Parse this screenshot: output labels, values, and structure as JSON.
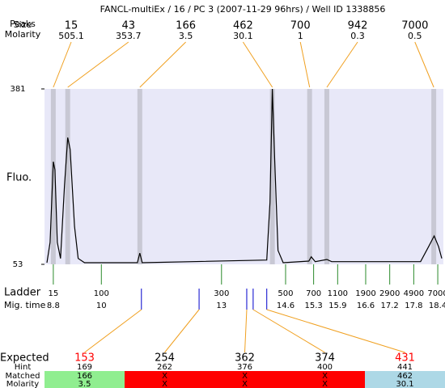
{
  "chart_data": {
    "type": "line",
    "title": "FANCL-multiEx / 16 / PC 3 (2007-11-29 96hrs) / Well ID 1338856",
    "y_label": "Fluo.",
    "x": [
      8.64,
      8.72,
      8.8,
      8.84,
      8.9,
      8.98,
      9.08,
      9.16,
      9.22,
      9.33,
      9.42,
      9.58,
      10.9,
      10.96,
      11.02,
      14.13,
      14.21,
      14.27,
      14.33,
      14.41,
      14.54,
      15.18,
      15.24,
      15.34,
      15.63,
      15.75,
      17.97,
      18.17,
      18.31,
      18.42,
      18.5
    ],
    "values": [
      56,
      94,
      245,
      230,
      94,
      64,
      200,
      290,
      268,
      124,
      64,
      56,
      56,
      74,
      56,
      61,
      169,
      381,
      245,
      79,
      56,
      59,
      67,
      58,
      62,
      58,
      58,
      86,
      106,
      86,
      64
    ],
    "color": "#000000",
    "xlim": [
      8.58,
      18.54
    ],
    "ylim": [
      53,
      381
    ],
    "yticks": [
      53,
      381
    ],
    "peak_header": "Peaks",
    "peak_rows": [
      "Size",
      "Molarity"
    ],
    "peaks": [
      {
        "size": 15,
        "molarity": 505.1,
        "time": 8.8
      },
      {
        "size": 43,
        "molarity": 353.7,
        "time": 9.16
      },
      {
        "size": 166,
        "molarity": 3.5,
        "time": 10.96
      },
      {
        "size": 462,
        "molarity": 30.1,
        "time": 14.27
      },
      {
        "size": 700,
        "molarity": 1,
        "time": 15.2
      },
      {
        "size": 942,
        "molarity": 0.3,
        "time": 15.63
      },
      {
        "size": 7000,
        "molarity": 0.5,
        "time": 18.3
      }
    ],
    "ladder_labels": [
      "Ladder",
      "Mig. time"
    ],
    "ladder": [
      {
        "size": 15,
        "time": 8.8
      },
      {
        "size": 100,
        "time": 10
      },
      {
        "size": 300,
        "time": 13
      },
      {
        "size": 500,
        "time": 14.6
      },
      {
        "size": 700,
        "time": 15.3
      },
      {
        "size": 1100,
        "time": 15.9
      },
      {
        "size": 1900,
        "time": 16.6
      },
      {
        "size": 2900,
        "time": 17.2
      },
      {
        "size": 4900,
        "time": 17.8
      },
      {
        "size": 7000,
        "time": 18.4
      }
    ],
    "expected_labels": [
      "Expected",
      "Hint",
      "Matched",
      "Molarity"
    ],
    "expected": [
      {
        "expected": 153,
        "hint": 169,
        "matched": 166,
        "molarity": 3.5,
        "time": 11.0,
        "color": "#ff0000",
        "fill": "#90ee90"
      },
      {
        "expected": 254,
        "hint": 262,
        "matched": "X",
        "molarity": "X",
        "time": 12.44,
        "color": "#000000",
        "fill": "#ff0000"
      },
      {
        "expected": 362,
        "hint": 376,
        "matched": "X",
        "molarity": "X",
        "time": 13.63,
        "color": "#000000",
        "fill": "#ff0000"
      },
      {
        "expected": 374,
        "hint": 400,
        "matched": "X",
        "molarity": "X",
        "time": 13.79,
        "color": "#000000",
        "fill": "#ff0000"
      },
      {
        "expected": 431,
        "hint": 441,
        "matched": 462,
        "molarity": 30.1,
        "time": 14.13,
        "color": "#ff0000",
        "fill": "#add8e6"
      }
    ]
  }
}
